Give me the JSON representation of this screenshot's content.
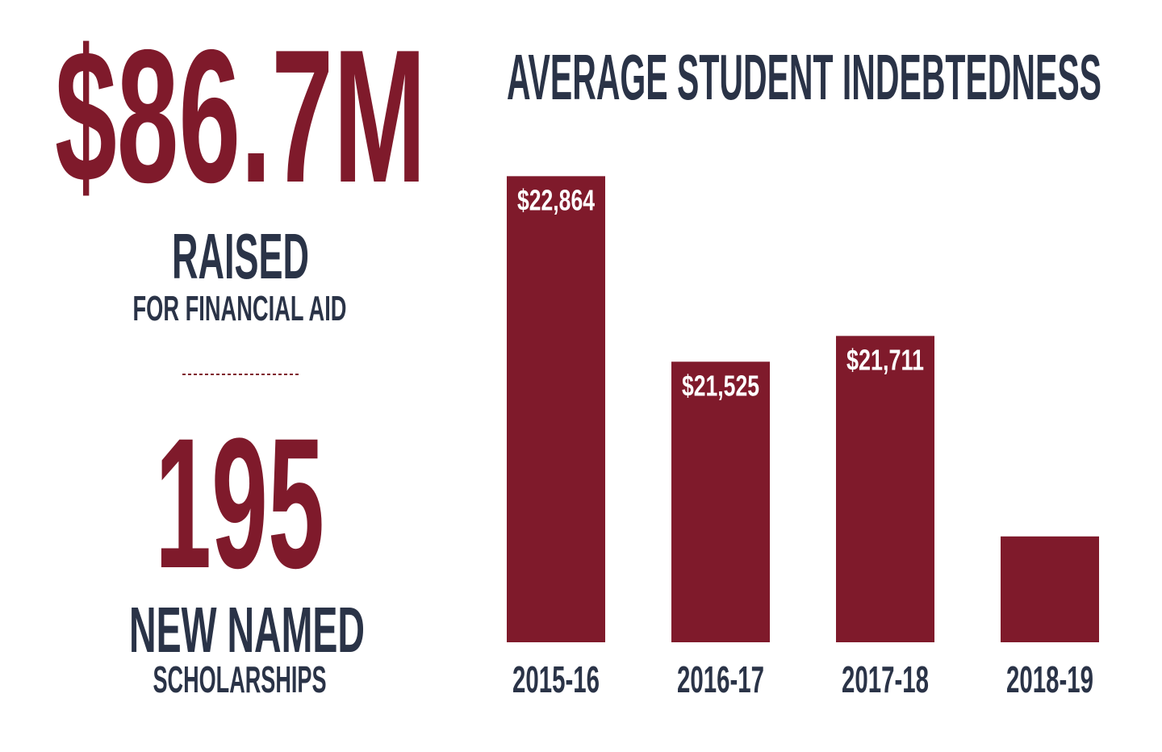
{
  "stats": [
    {
      "value": "$86.7M",
      "label": "RAISED",
      "sublabel": "FOR FINANCIAL AID"
    },
    {
      "value": "195",
      "label": "NEW NAMED",
      "sublabel": "SCHOLARSHIPS"
    }
  ],
  "chart_data": {
    "type": "bar",
    "title": "AVERAGE STUDENT INDEBTEDNESS",
    "categories": [
      "2015-16",
      "2016-17",
      "2017-18",
      "2018-19"
    ],
    "values": [
      22864,
      21525,
      21711,
      20264
    ],
    "value_labels": [
      "$22,864",
      "$21,525",
      "$21,711",
      null
    ],
    "color": "#7f1a2b",
    "ylim": [
      19500,
      23000
    ]
  }
}
